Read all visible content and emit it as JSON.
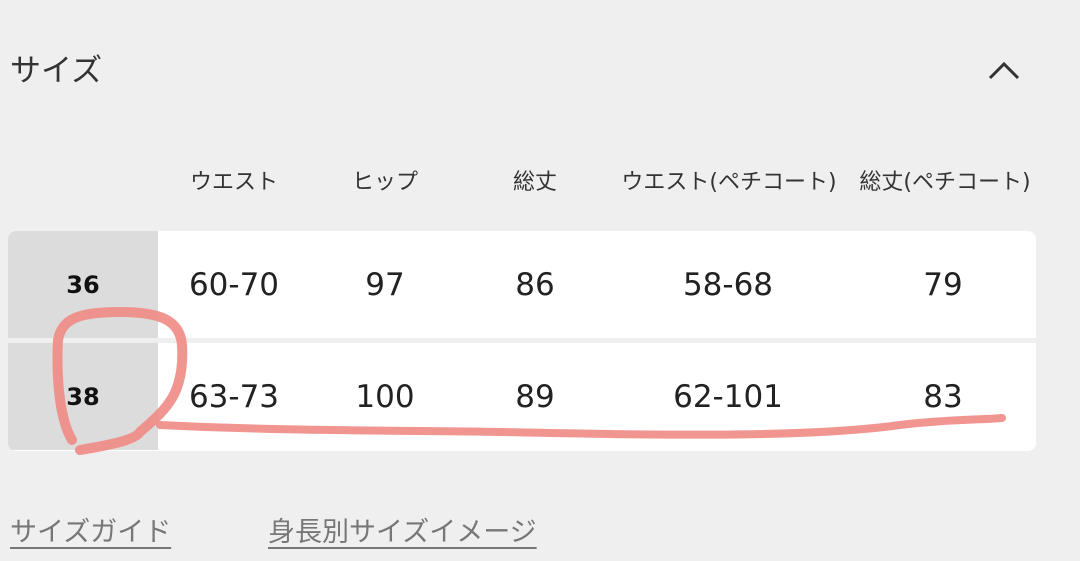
{
  "section": {
    "title": "サイズ",
    "collapse_icon": "chevron-up-icon"
  },
  "table": {
    "headers": [
      "ウエスト",
      "ヒップ",
      "総丈",
      "ウエスト(ペチコート)",
      "総丈(ペチコート)"
    ],
    "rows": [
      {
        "size": "36",
        "values": [
          "60-70",
          "97",
          "86",
          "58-68",
          "79"
        ]
      },
      {
        "size": "38",
        "values": [
          "63-73",
          "100",
          "89",
          "62-101",
          "83"
        ]
      }
    ]
  },
  "links": {
    "size_guide": "サイズガイド",
    "height_size_image": "身長別サイズイメージ"
  },
  "annotation": {
    "color": "#f08a84",
    "highlighted_size": "38"
  }
}
